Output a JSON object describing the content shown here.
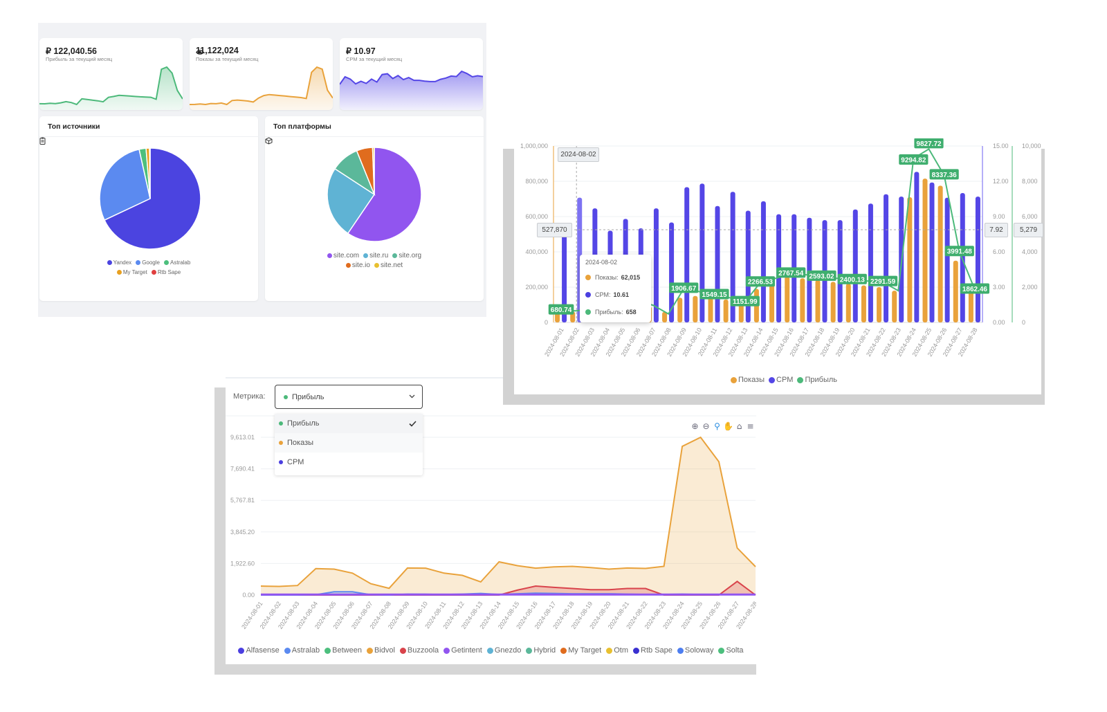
{
  "kpis": [
    {
      "value": "₽ 122,040.56",
      "label": "Прибыль за текущий месяц",
      "icon": "",
      "color": "#4cb97a"
    },
    {
      "value": "11,122,024",
      "label": "Показы за текущий месяц",
      "icon": "eye-icon",
      "color": "#e9a23b"
    },
    {
      "value": "₽ 10.97",
      "label": "CPM за текущий месяц",
      "icon": "",
      "color": "#5446e6"
    }
  ],
  "sources": {
    "title": "Топ источники",
    "icon": "clipboard-icon"
  },
  "platforms": {
    "title": "Топ платформы",
    "icon": "cube-icon"
  },
  "combo": {
    "crosshair": {
      "left": "527,870",
      "cpm": "7.92",
      "profit": "5,279",
      "date": "2024-08-02"
    },
    "tooltip": {
      "date": "2024-08-02",
      "rows": [
        {
          "label": "Показы:",
          "value": "62,015",
          "color": "#e9a23b"
        },
        {
          "label": "CPM:",
          "value": "10.61",
          "color": "#4b3fe0"
        },
        {
          "label": "Прибыль:",
          "value": "658",
          "color": "#4cb97a"
        }
      ]
    }
  },
  "metric": {
    "label": "Метрика:",
    "selected": "Прибыль",
    "selected_color": "#4cb97a",
    "options": [
      {
        "label": "Прибыль",
        "color": "#4cb97a",
        "checked": true
      },
      {
        "label": "Показы",
        "color": "#e9a23b"
      },
      {
        "label": "CPM",
        "color": "#4b3fe0"
      }
    ]
  },
  "toolbar": {
    "zoom_in": "⊕",
    "zoom_out": "⊖",
    "zoom": "⚲",
    "pan": "✋",
    "home": "⌂",
    "menu": "≡"
  },
  "chart_data": [
    {
      "type": "pie",
      "title": "Топ источники",
      "legend": "bottom",
      "slices": [
        {
          "name": "Yandex",
          "value": 68,
          "color": "#4b44e0"
        },
        {
          "name": "Google",
          "value": 28.5,
          "color": "#5b8af0"
        },
        {
          "name": "Astralab",
          "value": 2.2,
          "color": "#4cbf7d"
        },
        {
          "name": "My Target",
          "value": 1.1,
          "color": "#e8a020"
        },
        {
          "name": "Rtb Sape",
          "value": 0.2,
          "color": "#e04040"
        }
      ]
    },
    {
      "type": "pie",
      "title": "Топ платформы",
      "legend": "bottom",
      "slices": [
        {
          "name": "site.com",
          "value": 59.5,
          "color": "#9155ef"
        },
        {
          "name": "site.ru",
          "value": 24.7,
          "color": "#5fb3d4"
        },
        {
          "name": "site.org",
          "value": 9.7,
          "color": "#5bb89a"
        },
        {
          "name": "site.io",
          "value": 5.5,
          "color": "#e06c1e"
        },
        {
          "name": "site.net",
          "value": 0.6,
          "color": "#e8c030"
        }
      ]
    },
    {
      "type": "bar",
      "legend": "bottom",
      "grid": true,
      "categories": [
        "2024-08-01",
        "2024-08-02",
        "2024-08-03",
        "2024-08-04",
        "2024-08-05",
        "2024-08-06",
        "2024-08-07",
        "2024-08-08",
        "2024-08-09",
        "2024-08-10",
        "2024-08-11",
        "2024-08-12",
        "2024-08-13",
        "2024-08-14",
        "2024-08-15",
        "2024-08-16",
        "2024-08-17",
        "2024-08-18",
        "2024-08-19",
        "2024-08-20",
        "2024-08-21",
        "2024-08-22",
        "2024-08-23",
        "2024-08-24",
        "2024-08-25",
        "2024-08-26",
        "2024-08-27",
        "2024-08-28"
      ],
      "y_left": {
        "ticks": [
          "0",
          "200,000",
          "400,000",
          "600,000",
          "800,000",
          "1,000,000"
        ],
        "range": [
          0,
          1000000
        ],
        "color": "#e9a23b"
      },
      "y_cpm": {
        "ticks": [
          "0.00",
          "3.00",
          "6.00",
          "9.00",
          "12.00",
          "15.00"
        ],
        "range": [
          0,
          15
        ],
        "color": "#6b5ff0"
      },
      "y_profit": {
        "ticks": [
          "0",
          "2,000",
          "4,000",
          "6,000",
          "8,000",
          "10,000"
        ],
        "range": [
          0,
          10000
        ],
        "color": "#4cb97a"
      },
      "series": [
        {
          "name": "Показы",
          "type": "bar",
          "color": "#e9a23b",
          "values": [
            60000,
            62015,
            70000,
            60000,
            80000,
            75000,
            90000,
            60000,
            140000,
            150000,
            140000,
            130000,
            110000,
            190000,
            240000,
            260000,
            250000,
            240000,
            230000,
            220000,
            210000,
            200000,
            180000,
            710000,
            815000,
            775000,
            350000,
            190000
          ]
        },
        {
          "name": "CPM",
          "type": "bar",
          "color": "#5446e6",
          "values": [
            7.6,
            10.61,
            9.7,
            7.8,
            8.8,
            8.0,
            9.7,
            8.5,
            11.5,
            11.8,
            9.9,
            11.1,
            9.5,
            10.3,
            9.2,
            9.2,
            8.9,
            8.7,
            8.7,
            9.6,
            10.1,
            10.9,
            10.7,
            12.8,
            11.9,
            10.6,
            11.0,
            10.7
          ]
        },
        {
          "name": "Прибыль",
          "type": "line",
          "color": "#4cb97a",
          "values": [
            680.74,
            658,
            800,
            700,
            900,
            1200,
            976.05,
            485,
            1906.67,
            1750,
            1549.15,
            1400,
            1151.99,
            2266.53,
            2500,
            2767.54,
            2700,
            2593.02,
            2500,
            2400.13,
            2350,
            2291.59,
            1800,
            9294.82,
            9827.72,
            8337.36,
            3991.48,
            1862.46
          ]
        }
      ]
    },
    {
      "type": "area",
      "legend": "bottom",
      "grid": true,
      "categories": [
        "2024-08-01",
        "2024-08-02",
        "2024-08-03",
        "2024-08-04",
        "2024-08-05",
        "2024-08-06",
        "2024-08-07",
        "2024-08-08",
        "2024-08-09",
        "2024-08-10",
        "2024-08-11",
        "2024-08-12",
        "2024-08-13",
        "2024-08-14",
        "2024-08-15",
        "2024-08-16",
        "2024-08-17",
        "2024-08-18",
        "2024-08-19",
        "2024-08-20",
        "2024-08-21",
        "2024-08-22",
        "2024-08-23",
        "2024-08-24",
        "2024-08-25",
        "2024-08-26",
        "2024-08-27",
        "2024-08-28"
      ],
      "y_ticks": [
        "0.00",
        "1,922.60",
        "3,845.20",
        "5,767.81",
        "7,690.41",
        "9,613.01"
      ],
      "ylim": [
        0,
        9613.01
      ],
      "legend_items": [
        {
          "name": "Alfasense",
          "color": "#4b3fe0"
        },
        {
          "name": "Astralab",
          "color": "#5b8af0"
        },
        {
          "name": "Between",
          "color": "#4cbf7d"
        },
        {
          "name": "Bidvol",
          "color": "#e9a23b"
        },
        {
          "name": "Buzzoola",
          "color": "#d9434b"
        },
        {
          "name": "Getintent",
          "color": "#9155ef"
        },
        {
          "name": "Gnezdo",
          "color": "#5fb3d4"
        },
        {
          "name": "Hybrid",
          "color": "#5bb89a"
        },
        {
          "name": "My Target",
          "color": "#e06c1e"
        },
        {
          "name": "Otm",
          "color": "#e8c030"
        },
        {
          "name": "Rtb Sape",
          "color": "#3a30d0"
        },
        {
          "name": "Soloway",
          "color": "#4d7ef0"
        },
        {
          "name": "Solta",
          "color": "#4cbf7d"
        }
      ],
      "series": [
        {
          "name": "Bidvol",
          "color": "#e9a23b",
          "values": [
            550,
            525,
            580,
            1610,
            1580,
            1335,
            690,
            415,
            1650,
            1640,
            1335,
            1200,
            800,
            2025,
            1790,
            1640,
            1720,
            1750,
            1680,
            1580,
            1650,
            1625,
            1750,
            9060,
            9613,
            8125,
            2870,
            1730
          ]
        },
        {
          "name": "Buzzoola",
          "color": "#d9434b",
          "values": [
            0,
            0,
            0,
            0,
            0,
            0,
            0,
            0,
            0,
            0,
            0,
            0,
            0,
            0,
            300,
            550,
            470,
            400,
            330,
            330,
            400,
            400,
            0,
            0,
            0,
            0,
            830,
            0
          ]
        },
        {
          "name": "Astralab",
          "color": "#5b8af0",
          "values": [
            0,
            0,
            0,
            20,
            200,
            200,
            20,
            0,
            60,
            50,
            30,
            60,
            100,
            40,
            80,
            120,
            100,
            80,
            80,
            80,
            60,
            40,
            40,
            60,
            30,
            30,
            30,
            30
          ]
        },
        {
          "name": "Getintent",
          "color": "#9155ef",
          "values": [
            30,
            30,
            30,
            30,
            30,
            30,
            30,
            30,
            30,
            30,
            30,
            30,
            30,
            30,
            30,
            30,
            30,
            30,
            30,
            30,
            30,
            30,
            30,
            30,
            30,
            30,
            30,
            30
          ]
        }
      ]
    }
  ]
}
